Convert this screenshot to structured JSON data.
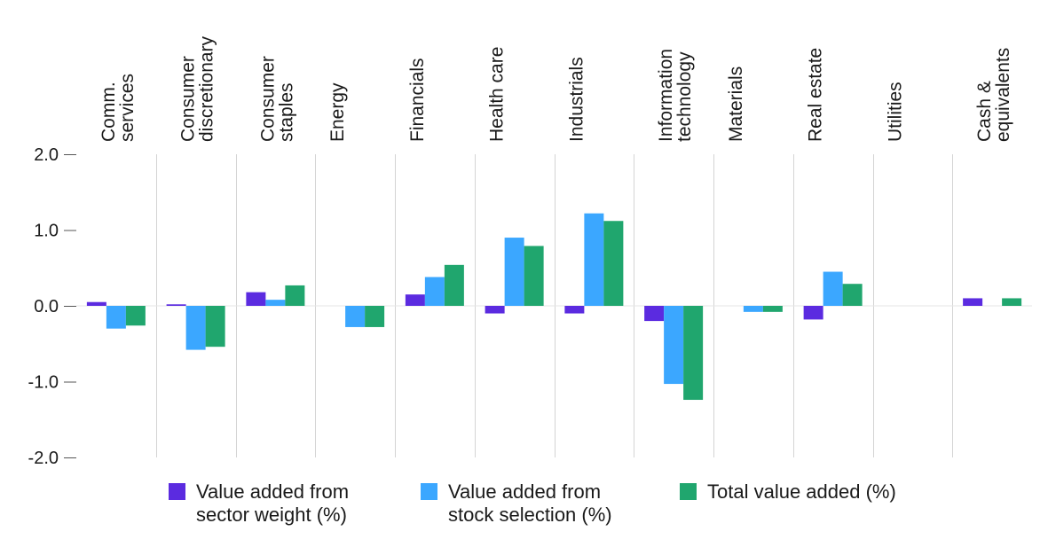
{
  "chart_data": {
    "type": "bar",
    "categories": [
      "Comm.\nservices",
      "Consumer\ndiscretionary",
      "Consumer\nstaples",
      "Energy",
      "Financials",
      "Health care",
      "Industrials",
      "Information\ntechnology",
      "Materials",
      "Real estate",
      "Utilities",
      "Cash &\nequivalents"
    ],
    "series": [
      {
        "name": "Value added from\nsector weight (%)",
        "color": "#5b2be0",
        "values": [
          0.05,
          0.02,
          0.18,
          0.0,
          0.15,
          -0.1,
          -0.1,
          -0.2,
          0.0,
          -0.18,
          0.0,
          0.1
        ]
      },
      {
        "name": "Value added from\nstock selection (%)",
        "color": "#3ba7ff",
        "values": [
          -0.3,
          -0.58,
          0.08,
          -0.28,
          0.38,
          0.9,
          1.22,
          -1.03,
          -0.08,
          0.45,
          0.0,
          0.0
        ]
      },
      {
        "name": "Total value added (%)",
        "color": "#20a66e",
        "values": [
          -0.26,
          -0.54,
          0.27,
          -0.28,
          0.54,
          0.79,
          1.12,
          -1.24,
          -0.08,
          0.29,
          0.0,
          0.1
        ]
      }
    ],
    "yticks": [
      "2.0",
      "1.0",
      "0.0",
      "-1.0",
      "-2.0"
    ],
    "ylim": [
      -2.0,
      2.0
    ],
    "grid": "vertical category separators",
    "legend_position": "bottom"
  }
}
